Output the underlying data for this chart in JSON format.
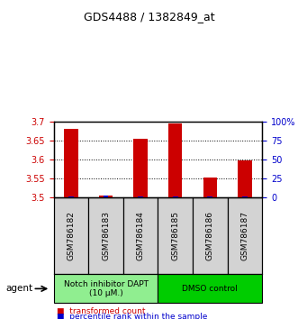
{
  "title": "GDS4488 / 1382849_at",
  "samples": [
    "GSM786182",
    "GSM786183",
    "GSM786184",
    "GSM786185",
    "GSM786186",
    "GSM786187"
  ],
  "transformed_counts": [
    3.68,
    3.505,
    3.655,
    3.695,
    3.553,
    3.597
  ],
  "percentile_ranks": [
    2,
    3,
    2,
    2,
    2,
    2
  ],
  "ylim_left": [
    3.5,
    3.7
  ],
  "ylim_right": [
    0,
    100
  ],
  "yticks_left": [
    3.5,
    3.55,
    3.6,
    3.65,
    3.7
  ],
  "yticks_right": [
    0,
    25,
    50,
    75,
    100
  ],
  "ytick_labels_left": [
    "3.5",
    "3.55",
    "3.6",
    "3.65",
    "3.7"
  ],
  "ytick_labels_right": [
    "0",
    "25",
    "50",
    "75",
    "100%"
  ],
  "bar_color_red": "#cc0000",
  "bar_color_blue": "#0000cc",
  "grid_color": "#000000",
  "agent_groups": [
    {
      "label": "Notch inhibitor DAPT\n(10 μM.)",
      "samples": [
        0,
        1,
        2
      ],
      "color": "#90ee90"
    },
    {
      "label": "DMSO control",
      "samples": [
        3,
        4,
        5
      ],
      "color": "#00cc00"
    }
  ],
  "xlabel_color_left": "#cc0000",
  "xlabel_color_right": "#0000cc",
  "bar_width": 0.4,
  "percentile_bar_width": 0.15,
  "background_color": "#ffffff",
  "plot_bg_color": "#ffffff"
}
